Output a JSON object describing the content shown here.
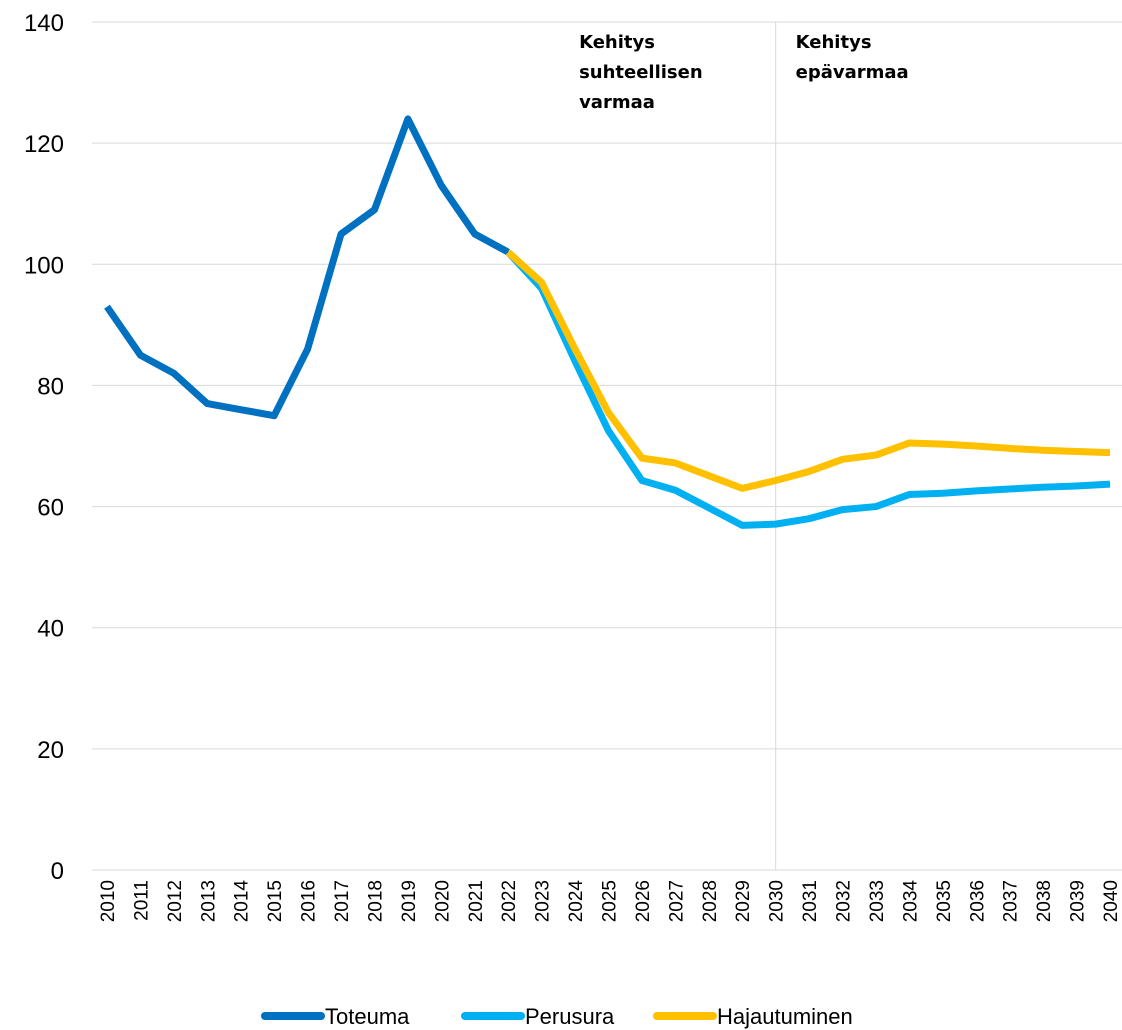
{
  "chart_data": {
    "type": "line",
    "categories": [
      "2010",
      "2011",
      "2012",
      "2013",
      "2014",
      "2015",
      "2016",
      "2017",
      "2018",
      "2019",
      "2020",
      "2021",
      "2022",
      "2023",
      "2024",
      "2025",
      "2026",
      "2027",
      "2028",
      "2029",
      "2030",
      "2031",
      "2032",
      "2033",
      "2034",
      "2035",
      "2036",
      "2037",
      "2038",
      "2039",
      "2040"
    ],
    "series": [
      {
        "name": "Toteuma",
        "color": "#0070c0",
        "values": [
          93,
          85,
          82,
          77,
          76,
          75,
          86,
          105,
          109,
          124,
          113,
          105,
          102,
          null,
          null,
          null,
          null,
          null,
          null,
          null,
          null,
          null,
          null,
          null,
          null,
          null,
          null,
          null,
          null,
          null,
          null
        ]
      },
      {
        "name": "Perusura",
        "color": "#00b0f0",
        "values": [
          null,
          null,
          null,
          null,
          null,
          null,
          null,
          null,
          null,
          null,
          null,
          null,
          102,
          96,
          84,
          72.5,
          64.3,
          62.7,
          59.8,
          56.9,
          57.1,
          58,
          59.5,
          60,
          62,
          62.2,
          62.6,
          62.9,
          63.2,
          63.4,
          63.7
        ]
      },
      {
        "name": "Hajautuminen",
        "color": "#ffc000",
        "values": [
          null,
          null,
          null,
          null,
          null,
          null,
          null,
          null,
          null,
          null,
          null,
          null,
          102,
          97,
          86,
          75.5,
          68,
          67.2,
          65.1,
          63,
          64.3,
          65.8,
          67.8,
          68.5,
          70.5,
          70.3,
          70,
          69.6,
          69.3,
          69.1,
          68.9
        ]
      }
    ],
    "annotations": [
      {
        "lines": [
          "Kehitys",
          "suhteellisen",
          "varmaa"
        ]
      },
      {
        "lines": [
          "Kehitys",
          "epävarmaa"
        ]
      }
    ],
    "divider": "2030",
    "ylim": [
      0,
      140
    ],
    "yticks": [
      0,
      20,
      40,
      60,
      80,
      100,
      120,
      140
    ],
    "grid": true
  }
}
